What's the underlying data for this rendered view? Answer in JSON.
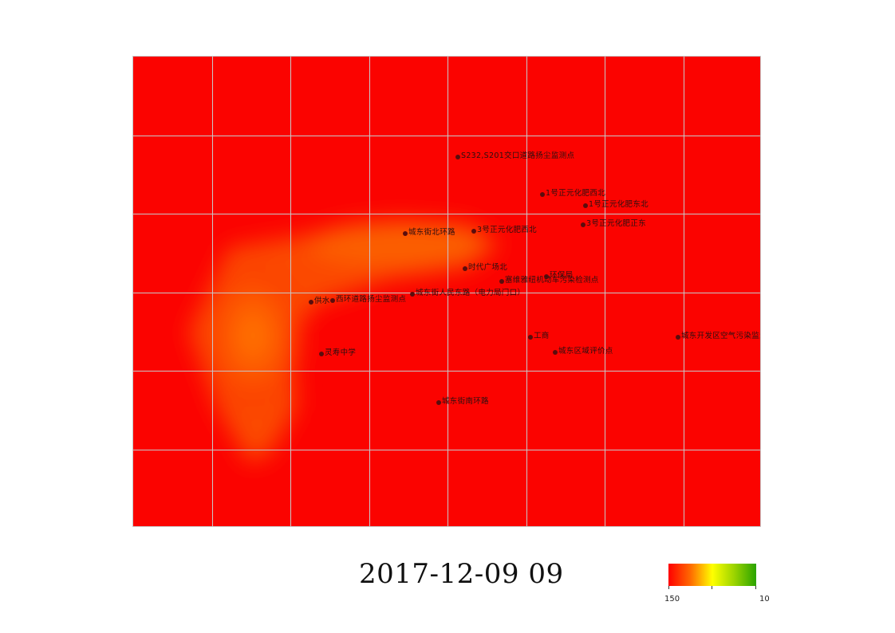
{
  "timestamp": "2017-12-09  09",
  "legend": {
    "min_label": "150",
    "max_label": "10",
    "colors": [
      "#ff0000",
      "#ff6a00",
      "#ffff00",
      "#9bd400",
      "#2aa300"
    ]
  },
  "map": {
    "background_color": "#fb0300",
    "grid_color": "#c8c8c8",
    "grid_columns": 8,
    "grid_rows": 6,
    "hotspot_color": "#ff7a00"
  },
  "stations": [
    {
      "id": "s1",
      "label": "S232,S201交口道路扬尘监测点"
    },
    {
      "id": "s2",
      "label": "1号正元化肥西北"
    },
    {
      "id": "s3",
      "label": "1号正元化肥东北"
    },
    {
      "id": "s4",
      "label": "城东街北环路"
    },
    {
      "id": "s5",
      "label": "3号正元化肥西北"
    },
    {
      "id": "s6",
      "label": "3号正元化肥正东"
    },
    {
      "id": "s7",
      "label": "时代广场北"
    },
    {
      "id": "s8",
      "label": "环保局"
    },
    {
      "id": "s9",
      "label": "塞维雅纽机动车污染检测点"
    },
    {
      "id": "s10",
      "label": "城东街人民东路（电力局门口）"
    },
    {
      "id": "s11",
      "label": "供水"
    },
    {
      "id": "s12",
      "label": "西环道路扬尘监测点"
    },
    {
      "id": "s13",
      "label": "工商"
    },
    {
      "id": "s14",
      "label": "城东开发区空气污染监测点"
    },
    {
      "id": "s15",
      "label": "灵寿中学"
    },
    {
      "id": "s16",
      "label": "城东区域评价点"
    },
    {
      "id": "s17",
      "label": "城东街南环路"
    }
  ]
}
